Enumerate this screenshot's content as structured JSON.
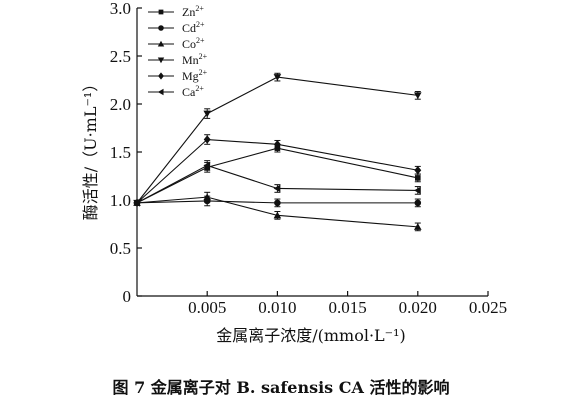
{
  "chart_data": {
    "type": "line",
    "x": [
      0,
      0.005,
      0.01,
      0.02
    ],
    "series": [
      {
        "name": "Zn",
        "charge": "2+",
        "marker": "square",
        "values": [
          0.97,
          1.34,
          1.54,
          1.23
        ]
      },
      {
        "name": "Cd",
        "charge": "2+",
        "marker": "circle",
        "values": [
          0.97,
          0.99,
          0.97,
          0.97
        ]
      },
      {
        "name": "Co",
        "charge": "2+",
        "marker": "triangle-up",
        "values": [
          0.97,
          1.03,
          0.84,
          0.72
        ]
      },
      {
        "name": "Mn",
        "charge": "2+",
        "marker": "triangle-down",
        "values": [
          0.97,
          1.9,
          2.28,
          2.09
        ]
      },
      {
        "name": "Mg",
        "charge": "2+",
        "marker": "diamond",
        "values": [
          0.97,
          1.63,
          1.58,
          1.31
        ]
      },
      {
        "name": "Ca",
        "charge": "2+",
        "marker": "triangle-left",
        "values": [
          0.97,
          1.36,
          1.12,
          1.1
        ]
      }
    ],
    "xlim": [
      0,
      0.025
    ],
    "ylim": [
      0,
      3.0
    ],
    "xticks": [
      "0.005",
      "0.010",
      "0.015",
      "0.020",
      "0.025"
    ],
    "yticks": [
      "0",
      "0.5",
      "1.0",
      "1.5",
      "2.0",
      "2.5",
      "3.0"
    ],
    "xlabel": "金属离子浓度/(mmol·L⁻¹)",
    "ylabel": "酶活性/（U·mL⁻¹）",
    "legend_position": "top-left",
    "caption": "图 7   金属离子对 B. safensis CA 活性的影响"
  }
}
